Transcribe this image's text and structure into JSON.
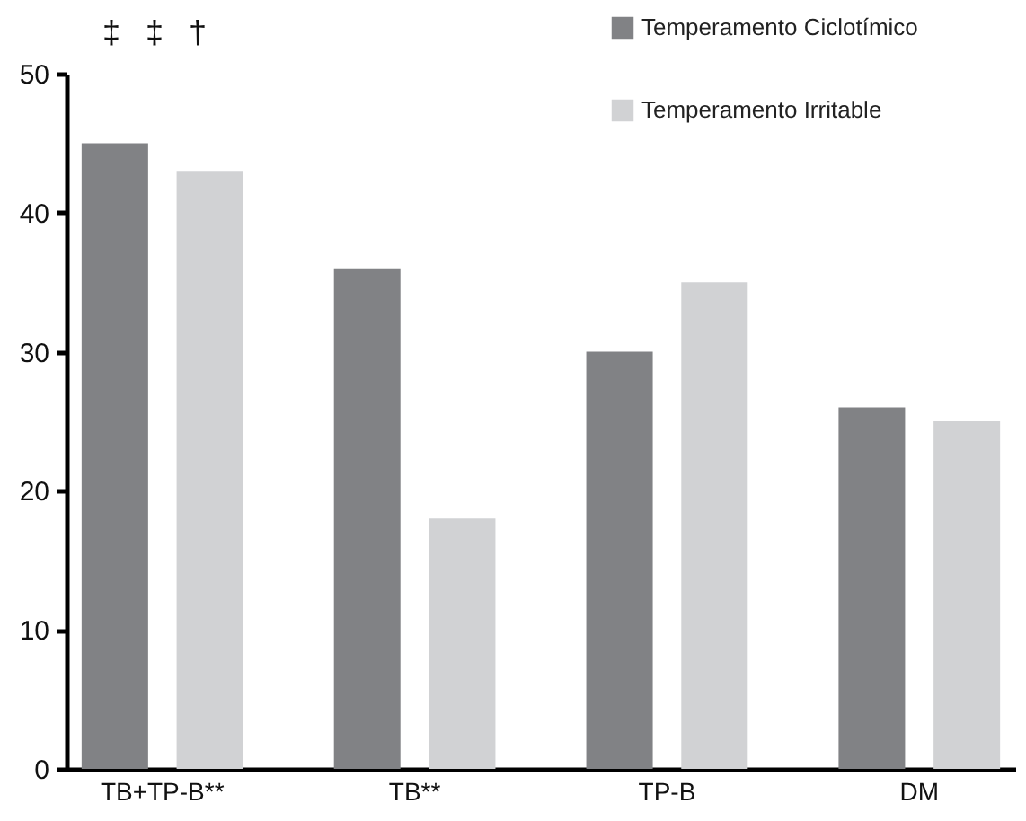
{
  "chart_data": {
    "type": "bar",
    "categories": [
      "TB+TP-B**",
      "TB**",
      "TP-B",
      "DM"
    ],
    "series": [
      {
        "name": "Temperamento Ciclotímico",
        "color": "#818285",
        "values": [
          45,
          36,
          30,
          26
        ]
      },
      {
        "name": "Temperamento Irritable",
        "color": "#d1d2d4",
        "values": [
          43,
          18,
          35,
          25
        ]
      }
    ],
    "ylim": [
      0,
      50
    ],
    "yticks": [
      0,
      10,
      20,
      30,
      40,
      50
    ],
    "legend": "top right",
    "grid": false,
    "annotations": [
      "‡",
      "‡",
      "†"
    ]
  }
}
